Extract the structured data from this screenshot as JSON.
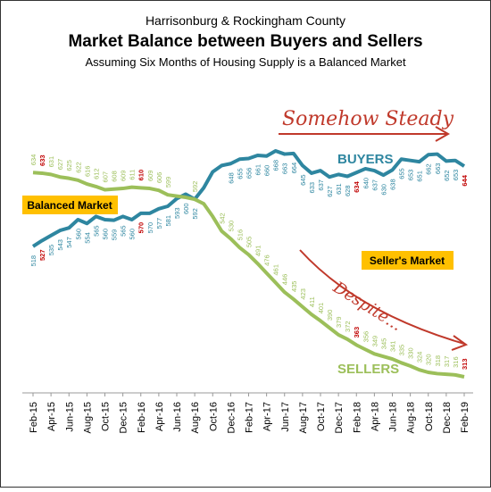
{
  "chart_data": {
    "type": "line",
    "supertitle": "Harrisonburg & Rockingham County",
    "title": "Market Balance between Buyers and Sellers",
    "subtitle": "Assuming Six Months of Housing Supply is a Balanced Market",
    "categories": [
      "Feb-15",
      null,
      "Apr-15",
      null,
      "Jun-15",
      null,
      "Aug-15",
      null,
      "Oct-15",
      null,
      "Dec-15",
      null,
      "Feb-16",
      null,
      "Apr-16",
      null,
      "Jun-16",
      null,
      "Aug-16",
      null,
      "Oct-16",
      null,
      "Dec-16",
      null,
      "Feb-17",
      null,
      "Apr-17",
      null,
      "Jun-17",
      null,
      "Aug-17",
      null,
      "Oct-17",
      null,
      "Dec-17",
      null,
      "Feb-18",
      null,
      "Apr-18",
      null,
      "Jun-18",
      null,
      "Aug-18",
      null,
      "Oct-18",
      null,
      "Dec-18",
      null,
      "Feb-19"
    ],
    "series": [
      {
        "name": "BUYERS",
        "color": "#2e86a0",
        "values": [
          518,
          527,
          535,
          543,
          547,
          560,
          554,
          565,
          560,
          559,
          565,
          560,
          570,
          570,
          577,
          581,
          593,
          600,
          592,
          610,
          635,
          645,
          648,
          655,
          656,
          661,
          660,
          668,
          663,
          664,
          645,
          633,
          637,
          627,
          631,
          628,
          634,
          640,
          637,
          630,
          638,
          655,
          653,
          651,
          662,
          663,
          652,
          653,
          644
        ],
        "value_labels": [
          "518",
          "527",
          "535",
          "543",
          "547",
          "560",
          "554",
          "565",
          "560",
          "559",
          "565",
          "560",
          "570",
          "570",
          "577",
          "581",
          "593",
          "600",
          "592",
          null,
          null,
          null,
          "648",
          "655",
          "656",
          "661",
          "660",
          "668",
          "663",
          "664",
          "645",
          "633",
          "637",
          "627",
          "631",
          "628",
          "634",
          "640",
          "637",
          "630",
          "638",
          "655",
          "653",
          "651",
          "662",
          "663",
          "652",
          "653",
          "644"
        ]
      },
      {
        "name": "SELLERS",
        "color": "#9cbf5a",
        "values": [
          634,
          633,
          631,
          627,
          625,
          622,
          616,
          612,
          607,
          608,
          609,
          611,
          610,
          609,
          606,
          599,
          597,
          595,
          592,
          585,
          565,
          542,
          530,
          516,
          505,
          491,
          476,
          461,
          446,
          435,
          423,
          411,
          401,
          390,
          379,
          372,
          363,
          356,
          349,
          345,
          341,
          335,
          330,
          324,
          320,
          318,
          317,
          316,
          313
        ],
        "value_labels": [
          "634",
          "633",
          "631",
          "627",
          "625",
          "622",
          "616",
          "612",
          "607",
          "608",
          "609",
          "611",
          "610",
          "609",
          "606",
          "599",
          null,
          null,
          "592",
          null,
          null,
          "542",
          "530",
          "516",
          "505",
          "491",
          "476",
          "461",
          "446",
          "435",
          "423",
          "411",
          "401",
          "390",
          "379",
          "372",
          "363",
          "356",
          "349",
          "345",
          "341",
          "335",
          "330",
          "324",
          "320",
          "318",
          "317",
          "316",
          "313"
        ]
      }
    ],
    "highlight_indices": [
      1,
      12,
      36,
      48
    ],
    "highlight_color": "#c00000",
    "annotations": [
      "Somehow Steady",
      "Despite...",
      "Balanced Market",
      "Seller's Market"
    ]
  }
}
